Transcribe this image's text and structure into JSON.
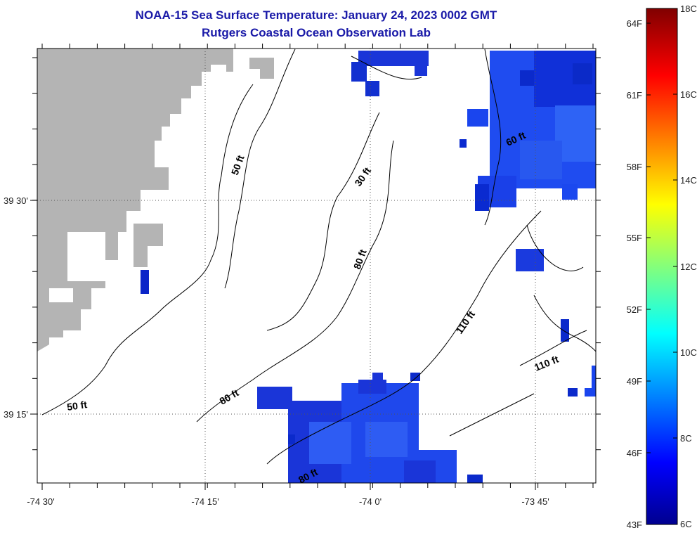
{
  "header": {
    "title": "NOAA-15 Sea Surface Temperature:  January 24, 2023 0002 GMT",
    "subtitle": "Rutgers Coastal Ocean Observation Lab"
  },
  "map": {
    "lon_ticks": [
      "-74 30'",
      "-74 15'",
      "-74 0'",
      "-73 45'"
    ],
    "lat_ticks": [
      "39 30'",
      "39 15'"
    ],
    "contour_labels": [
      "50 ft",
      "30 ft",
      "80 ft",
      "60 ft",
      "110 ft",
      "110 ft",
      "80 ft",
      "50 ft",
      "80 ft"
    ],
    "colors": {
      "land": "#b4b4b4",
      "ocean_bg": "#ffffff",
      "contour": "#000000"
    }
  },
  "colorbar": {
    "fahrenheit": [
      "64F",
      "61F",
      "58F",
      "55F",
      "52F",
      "49F",
      "46F",
      "43F"
    ],
    "celsius": [
      "18C",
      "16C",
      "14C",
      "12C",
      "10C",
      "8C",
      "6C"
    ],
    "range_c": [
      6,
      18
    ]
  }
}
